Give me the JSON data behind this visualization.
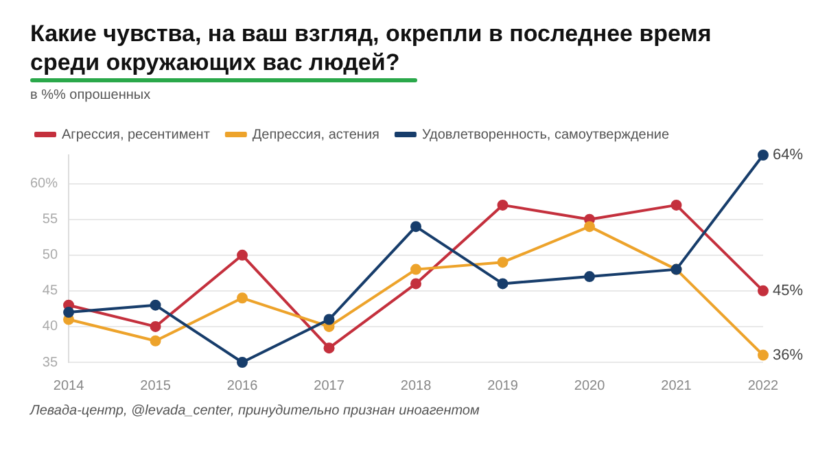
{
  "chart_data": {
    "type": "line",
    "title": "Какие чувства, на ваш взгляд, окрепли в последнее время среди окружающих вас людей?",
    "subtitle": "в %% опрошенных",
    "categories": [
      "2014",
      "2015",
      "2016",
      "2017",
      "2018",
      "2019",
      "2020",
      "2021",
      "2022"
    ],
    "series": [
      {
        "name": "Агрессия, ресентимент",
        "color": "#c4303d",
        "values": [
          43,
          40,
          50,
          37,
          46,
          57,
          55,
          57,
          45
        ],
        "value_labels": [
          null,
          null,
          null,
          null,
          null,
          null,
          null,
          null,
          "45%"
        ]
      },
      {
        "name": "Депрессия, астения",
        "color": "#eda32b",
        "values": [
          41,
          38,
          44,
          40,
          48,
          49,
          54,
          48,
          36
        ],
        "value_labels": [
          null,
          null,
          null,
          null,
          null,
          null,
          null,
          null,
          "36%"
        ]
      },
      {
        "name": "Удовлетворенность, самоутверждение",
        "color": "#173d6b",
        "values": [
          42,
          43,
          35,
          41,
          54,
          46,
          47,
          48,
          64
        ],
        "value_labels": [
          null,
          null,
          null,
          null,
          null,
          null,
          null,
          null,
          "64%"
        ]
      }
    ],
    "ylim": [
      35,
      64
    ],
    "yticks": [
      35,
      40,
      45,
      50,
      55,
      {
        "value": 60,
        "label": "60%"
      }
    ],
    "grid": "y",
    "legend": "top left",
    "marker": "circle",
    "line_style": "solid",
    "annotations": [
      "Левада-центр, @levada_center, принудительно признан иноагентом"
    ]
  }
}
